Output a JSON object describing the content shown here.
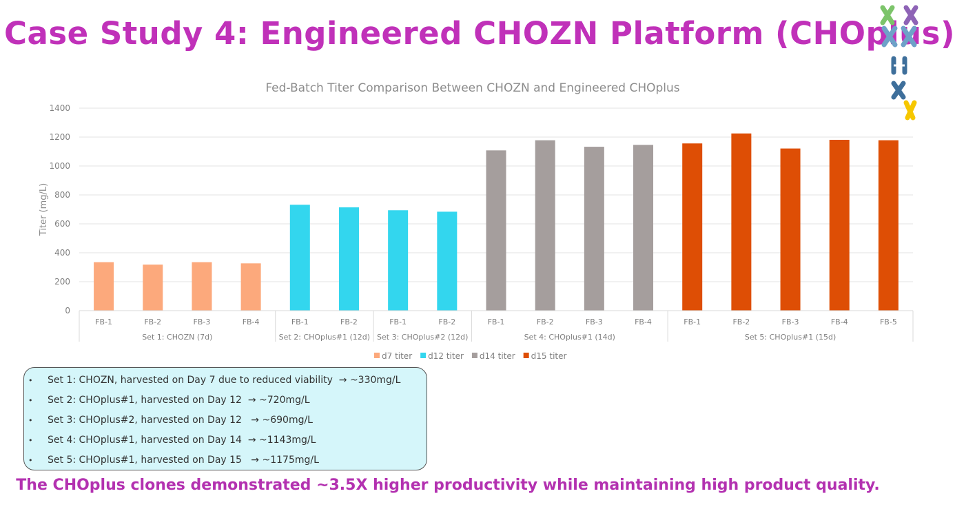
{
  "header": {
    "title": "Case Study 4: Engineered CHOZN Platform (CHOplus)"
  },
  "chart_data": {
    "type": "bar",
    "title": "Fed-Batch Titer Comparison Between CHOZN and Engineered  CHOplus",
    "xlabel": "",
    "ylabel": "Titer (mg/L)",
    "ylim": [
      0,
      1400
    ],
    "yticks": [
      0,
      200,
      400,
      600,
      800,
      1000,
      1200,
      1400
    ],
    "grid": true,
    "legend_position": "bottom",
    "groups": [
      {
        "label": "Set 1: CHOZN (7d)",
        "series": "d7 titer",
        "categories": [
          "FB-1",
          "FB-2",
          "FB-3",
          "FB-4"
        ],
        "values": [
          335,
          318,
          335,
          327
        ]
      },
      {
        "label": "Set 2: CHOplus#1 (12d)",
        "series": "d12 titer",
        "categories": [
          "FB-1",
          "FB-2"
        ],
        "values": [
          732,
          714
        ]
      },
      {
        "label": "Set 3: CHOplus#2 (12d)",
        "series": "d12 titer",
        "categories": [
          "FB-1",
          "FB-2"
        ],
        "values": [
          694,
          684
        ]
      },
      {
        "label": "Set 4: CHOplus#1 (14d)",
        "series": "d14 titer",
        "categories": [
          "FB-1",
          "FB-2",
          "FB-3",
          "FB-4"
        ],
        "values": [
          1108,
          1178,
          1133,
          1146
        ]
      },
      {
        "label": "Set 5: CHOplus#1 (15d)",
        "series": "d15 titer",
        "categories": [
          "FB-1",
          "FB-2",
          "FB-3",
          "FB-4",
          "FB-5"
        ],
        "values": [
          1156,
          1225,
          1121,
          1181,
          1178
        ]
      }
    ],
    "legend": [
      {
        "name": "d7 titer",
        "color": "#fca97c"
      },
      {
        "name": "d12 titer",
        "color": "#33d6ee"
      },
      {
        "name": "d14 titer",
        "color": "#a59e9d"
      },
      {
        "name": "d15 titer",
        "color": "#de4e05"
      }
    ]
  },
  "notes": [
    "Set 1: CHOZN, harvested on Day 7 due to reduced viability  → ~330mg/L",
    "Set 2: CHOplus#1, harvested on Day 12  → ~720mg/L",
    "Set 3: CHOplus#2, harvested on Day 12   → ~690mg/L",
    "Set 4: CHOplus#1, harvested on Day 14  → ~1143mg/L",
    "Set 5: CHOplus#1, harvested on Day 15   → ~1175mg/L"
  ],
  "bullet": "•",
  "footer": "The CHOplus clones demonstrated ~3.5X higher productivity while maintaining high product quality."
}
